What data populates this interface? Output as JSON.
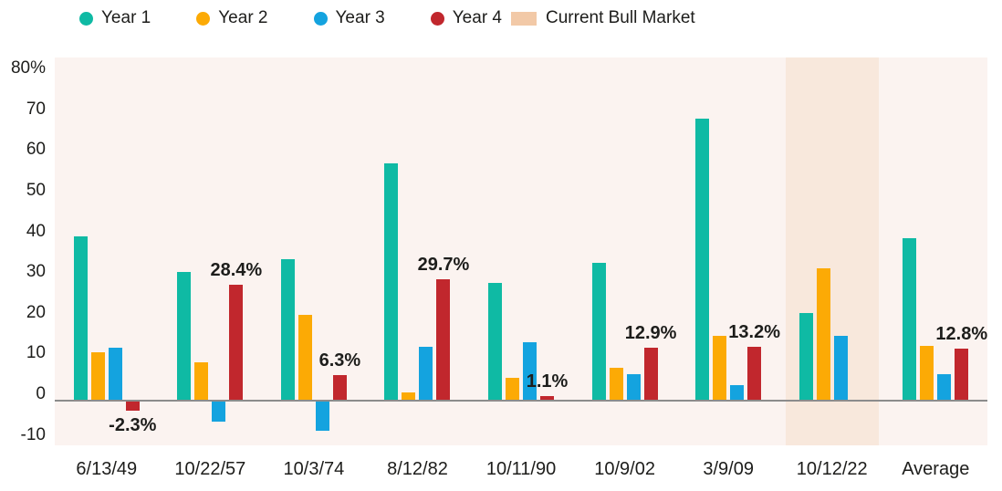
{
  "colors": {
    "plot_background": "#fbf3f0",
    "axis_line": "#8c8c8c",
    "text": "#1d1d1b",
    "year1": "#0fbaa4",
    "year2": "#fcaa05",
    "year3": "#14a3df",
    "year4": "#c1272d",
    "band": "#f8e8dc",
    "band_legend_swatch": "#f2c9a7"
  },
  "legend": {
    "items": [
      {
        "label": "Year 1",
        "type": "dot",
        "color": "#0fbaa4"
      },
      {
        "label": "Year 2",
        "type": "dot",
        "color": "#fcaa05"
      },
      {
        "label": "Year 3",
        "type": "dot",
        "color": "#14a3df"
      },
      {
        "label": "Year 4",
        "type": "dot",
        "color": "#c1272d"
      },
      {
        "label": "Current Bull Market",
        "type": "swatch",
        "color": "#f2c9a7"
      }
    ]
  },
  "chart_data": {
    "type": "bar",
    "title": "",
    "xlabel": "",
    "ylabel": "",
    "grid": false,
    "legend_position": "top",
    "categories": [
      "6/13/49",
      "10/22/57",
      "10/3/74",
      "8/12/82",
      "10/11/90",
      "10/9/02",
      "3/9/09",
      "10/12/22",
      "Average"
    ],
    "series": [
      {
        "name": "Year 1",
        "color": "#0fbaa4",
        "values": [
          40.3,
          31.5,
          34.7,
          58.2,
          29.0,
          33.9,
          69.2,
          21.5,
          39.9
        ]
      },
      {
        "name": "Year 2",
        "color": "#fcaa05",
        "values": [
          11.9,
          9.5,
          21.1,
          2.0,
          5.6,
          8.1,
          15.8,
          32.5,
          13.5
        ]
      },
      {
        "name": "Year 3",
        "color": "#14a3df",
        "values": [
          13.0,
          -4.9,
          -7.2,
          13.2,
          14.4,
          6.5,
          3.8,
          15.9,
          6.4
        ]
      },
      {
        "name": "Year 4",
        "color": "#c1272d",
        "values": [
          -2.3,
          28.4,
          6.3,
          29.7,
          1.1,
          12.9,
          13.2,
          null,
          12.8
        ]
      }
    ],
    "annotations": [
      {
        "category": "6/13/49",
        "series": "Year 4",
        "text": "-2.3%",
        "position": "below"
      },
      {
        "category": "10/22/57",
        "series": "Year 4",
        "text": "28.4%",
        "position": "above"
      },
      {
        "category": "10/3/74",
        "series": "Year 4",
        "text": "6.3%",
        "position": "above"
      },
      {
        "category": "8/12/82",
        "series": "Year 4",
        "text": "29.7%",
        "position": "above"
      },
      {
        "category": "10/11/90",
        "series": "Year 4",
        "text": "1.1%",
        "position": "above"
      },
      {
        "category": "10/9/02",
        "series": "Year 4",
        "text": "12.9%",
        "position": "above"
      },
      {
        "category": "3/9/09",
        "series": "Year 4",
        "text": "13.2%",
        "position": "above"
      },
      {
        "category": "Average",
        "series": "Year 4",
        "text": "12.8%",
        "position": "above"
      }
    ],
    "y_axis": {
      "tick_labels": [
        "80%",
        "70",
        "60",
        "50",
        "40",
        "30",
        "20",
        "10",
        "0",
        "-10"
      ],
      "tick_values": [
        80,
        70,
        60,
        50,
        40,
        30,
        20,
        10,
        0,
        -10
      ],
      "ylim": [
        -11,
        84.3
      ]
    },
    "highlight_band": {
      "category": "10/12/22",
      "label": "Current Bull Market",
      "color": "#f8e8dc"
    }
  }
}
